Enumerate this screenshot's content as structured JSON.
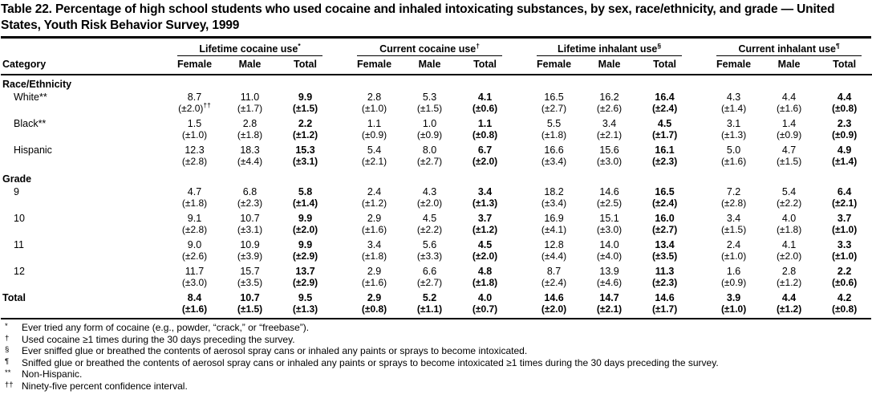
{
  "title": "Table 22. Percentage of high school students who used cocaine and inhaled intoxicating substances, by sex, race/ethnicity, and grade — United States, Youth Risk Behavior Survey, 1999",
  "table": {
    "category_header": "Category",
    "groups": [
      {
        "label": "Lifetime cocaine use",
        "marker": "*"
      },
      {
        "label": "Current cocaine use",
        "marker": "†"
      },
      {
        "label": "Lifetime inhalant use",
        "marker": "§"
      },
      {
        "label": "Current inhalant use",
        "marker": "¶"
      }
    ],
    "sub_headers": [
      "Female",
      "Male",
      "Total"
    ],
    "rows": [
      {
        "type": "section",
        "label": "Race/Ethnicity"
      },
      {
        "type": "data",
        "label": "White**",
        "values": [
          "8.7",
          "11.0",
          "9.9",
          "2.8",
          "5.3",
          "4.1",
          "16.5",
          "16.2",
          "16.4",
          "4.3",
          "4.4",
          "4.4"
        ],
        "cis": [
          "(±2.0)††",
          "(±1.7)",
          "(±1.5)",
          "(±1.0)",
          "(±1.5)",
          "(±0.6)",
          "(±2.7)",
          "(±2.6)",
          "(±2.4)",
          "(±1.4)",
          "(±1.6)",
          "(±0.8)"
        ]
      },
      {
        "type": "data",
        "label": "Black**",
        "values": [
          "1.5",
          "2.8",
          "2.2",
          "1.1",
          "1.0",
          "1.1",
          "5.5",
          "3.4",
          "4.5",
          "3.1",
          "1.4",
          "2.3"
        ],
        "cis": [
          "(±1.0)",
          "(±1.8)",
          "(±1.2)",
          "(±0.9)",
          "(±0.9)",
          "(±0.8)",
          "(±1.8)",
          "(±2.1)",
          "(±1.7)",
          "(±1.3)",
          "(±0.9)",
          "(±0.9)"
        ]
      },
      {
        "type": "data",
        "label": "Hispanic",
        "values": [
          "12.3",
          "18.3",
          "15.3",
          "5.4",
          "8.0",
          "6.7",
          "16.6",
          "15.6",
          "16.1",
          "5.0",
          "4.7",
          "4.9"
        ],
        "cis": [
          "(±2.8)",
          "(±4.4)",
          "(±3.1)",
          "(±2.1)",
          "(±2.7)",
          "(±2.0)",
          "(±3.4)",
          "(±3.0)",
          "(±2.3)",
          "(±1.6)",
          "(±1.5)",
          "(±1.4)"
        ]
      },
      {
        "type": "section",
        "label": "Grade"
      },
      {
        "type": "data",
        "label": "9",
        "values": [
          "4.7",
          "6.8",
          "5.8",
          "2.4",
          "4.3",
          "3.4",
          "18.2",
          "14.6",
          "16.5",
          "7.2",
          "5.4",
          "6.4"
        ],
        "cis": [
          "(±1.8)",
          "(±2.3)",
          "(±1.4)",
          "(±1.2)",
          "(±2.0)",
          "(±1.3)",
          "(±3.4)",
          "(±2.5)",
          "(±2.4)",
          "(±2.8)",
          "(±2.2)",
          "(±2.1)"
        ]
      },
      {
        "type": "data",
        "label": "10",
        "values": [
          "9.1",
          "10.7",
          "9.9",
          "2.9",
          "4.5",
          "3.7",
          "16.9",
          "15.1",
          "16.0",
          "3.4",
          "4.0",
          "3.7"
        ],
        "cis": [
          "(±2.8)",
          "(±3.1)",
          "(±2.0)",
          "(±1.6)",
          "(±2.2)",
          "(±1.2)",
          "(±4.1)",
          "(±3.0)",
          "(±2.7)",
          "(±1.5)",
          "(±1.8)",
          "(±1.0)"
        ]
      },
      {
        "type": "data",
        "label": "11",
        "values": [
          "9.0",
          "10.9",
          "9.9",
          "3.4",
          "5.6",
          "4.5",
          "12.8",
          "14.0",
          "13.4",
          "2.4",
          "4.1",
          "3.3"
        ],
        "cis": [
          "(±2.6)",
          "(±3.9)",
          "(±2.9)",
          "(±1.8)",
          "(±3.3)",
          "(±2.0)",
          "(±4.4)",
          "(±4.0)",
          "(±3.5)",
          "(±1.0)",
          "(±2.0)",
          "(±1.0)"
        ]
      },
      {
        "type": "data",
        "label": "12",
        "values": [
          "11.7",
          "15.7",
          "13.7",
          "2.9",
          "6.6",
          "4.8",
          "8.7",
          "13.9",
          "11.3",
          "1.6",
          "2.8",
          "2.2"
        ],
        "cis": [
          "(±3.0)",
          "(±3.5)",
          "(±2.9)",
          "(±1.6)",
          "(±2.7)",
          "(±1.8)",
          "(±2.4)",
          "(±4.6)",
          "(±2.3)",
          "(±0.9)",
          "(±1.2)",
          "(±0.6)"
        ]
      },
      {
        "type": "total",
        "label": "Total",
        "values": [
          "8.4",
          "10.7",
          "9.5",
          "2.9",
          "5.2",
          "4.0",
          "14.6",
          "14.7",
          "14.6",
          "3.9",
          "4.4",
          "4.2"
        ],
        "cis": [
          "(±1.6)",
          "(±1.5)",
          "(±1.3)",
          "(±0.8)",
          "(±1.1)",
          "(±0.7)",
          "(±2.0)",
          "(±2.1)",
          "(±1.7)",
          "(±1.0)",
          "(±1.2)",
          "(±0.8)"
        ]
      }
    ]
  },
  "footnotes": [
    {
      "marker": "*",
      "text": "Ever tried any form of cocaine (e.g., powder, “crack,” or “freebase”)."
    },
    {
      "marker": "†",
      "text": "Used cocaine ≥1 times during the 30 days preceding the survey."
    },
    {
      "marker": "§",
      "text": "Ever sniffed glue or breathed the contents of aerosol spray cans or inhaled any paints or sprays to become intoxicated."
    },
    {
      "marker": "¶",
      "text": "Sniffed glue or breathed the contents of aerosol spray cans or inhaled any paints or sprays to become intoxicated ≥1 times during the 30 days preceding the survey."
    },
    {
      "marker": "**",
      "text": "Non-Hispanic."
    },
    {
      "marker": "††",
      "text": "Ninety-five percent confidence interval."
    }
  ]
}
